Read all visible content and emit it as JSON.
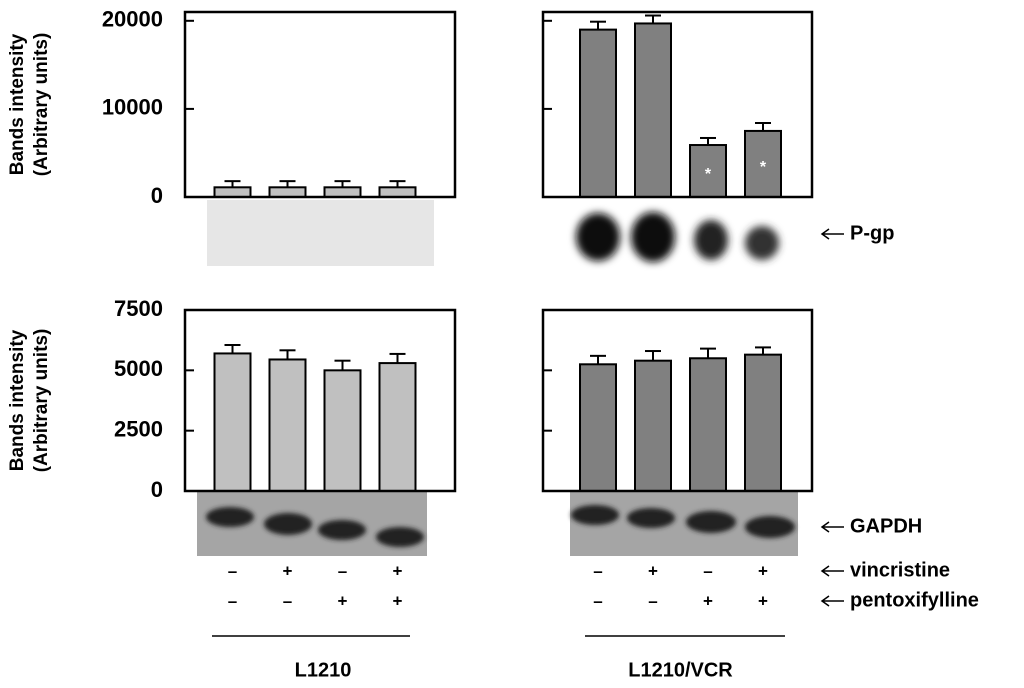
{
  "chart_data": [
    {
      "type": "bar",
      "ylabel": [
        "Bands intensity",
        "(Arbitrary units)"
      ],
      "color": "#c0c0c0",
      "values": [
        1100,
        1100,
        1100,
        1100
      ],
      "errors": [
        700,
        700,
        700,
        700
      ],
      "ylim": [
        0,
        21000
      ],
      "yticks": [
        0,
        10000,
        20000
      ],
      "ytick_labels": true
    },
    {
      "type": "bar",
      "color": "#808080",
      "band_label": "P-gp",
      "values": [
        19000,
        19700,
        5900,
        7500
      ],
      "errors": [
        900,
        900,
        800,
        900
      ],
      "markers": [
        null,
        null,
        "*",
        "*"
      ],
      "ylim": [
        0,
        21000
      ],
      "yticks": [
        0,
        10000,
        20000
      ],
      "ytick_labels": false
    },
    {
      "type": "bar",
      "ylabel": [
        "Bands intensity",
        "(Arbitrary units)"
      ],
      "color": "#c0c0c0",
      "band_label": null,
      "values": [
        5700,
        5450,
        5000,
        5300
      ],
      "errors": [
        350,
        380,
        400,
        380
      ],
      "ylim": [
        0,
        7500
      ],
      "yticks": [
        0,
        2500,
        5000,
        7500
      ],
      "ytick_labels": true,
      "treatments": [
        [
          "–",
          "+",
          "–",
          "+"
        ],
        [
          "–",
          "–",
          "+",
          "+"
        ]
      ],
      "group_label": "L1210"
    },
    {
      "type": "bar",
      "color": "#808080",
      "band_label": "GAPDH",
      "values": [
        5250,
        5400,
        5500,
        5650
      ],
      "errors": [
        350,
        400,
        400,
        300
      ],
      "ylim": [
        0,
        7500
      ],
      "yticks": [
        0,
        2500,
        5000,
        7500
      ],
      "ytick_labels": false,
      "treatments": [
        [
          "–",
          "+",
          "–",
          "+"
        ],
        [
          "–",
          "–",
          "+",
          "+"
        ]
      ],
      "group_label": "L1210/VCR",
      "treatment_labels": [
        "vincristine",
        "pentoxifylline"
      ]
    }
  ]
}
